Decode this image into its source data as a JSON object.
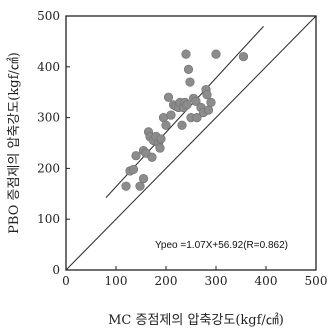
{
  "chart_data": {
    "type": "scatter",
    "title": "",
    "xlabel": "MC 증점제의 압축강도(kgf/㎠)",
    "ylabel": "PBO 증점제의 압축강도(kgf/㎠)",
    "xlim": [
      0,
      500
    ],
    "ylim": [
      0,
      500
    ],
    "xticks": [
      0,
      100,
      200,
      300,
      400,
      500
    ],
    "yticks": [
      0,
      100,
      200,
      300,
      400,
      500
    ],
    "grid": false,
    "legend": "none",
    "colors": {
      "points": "#8c8c8c",
      "lines": "#333333",
      "axes": "#222222"
    },
    "annotation": "Ypeo =1.07X+56.92(R=0.862)",
    "series": [
      {
        "points": [
          [
            120,
            165
          ],
          [
            128,
            195
          ],
          [
            135,
            198
          ],
          [
            140,
            225
          ],
          [
            148,
            165
          ],
          [
            155,
            180
          ],
          [
            155,
            235
          ],
          [
            160,
            230
          ],
          [
            165,
            272
          ],
          [
            168,
            262
          ],
          [
            172,
            222
          ],
          [
            175,
            255
          ],
          [
            180,
            263
          ],
          [
            185,
            250
          ],
          [
            188,
            240
          ],
          [
            190,
            258
          ],
          [
            195,
            300
          ],
          [
            200,
            285
          ],
          [
            205,
            340
          ],
          [
            210,
            305
          ],
          [
            215,
            325
          ],
          [
            220,
            322
          ],
          [
            225,
            320
          ],
          [
            228,
            330
          ],
          [
            232,
            285
          ],
          [
            235,
            320
          ],
          [
            238,
            330
          ],
          [
            240,
            425
          ],
          [
            242,
            325
          ],
          [
            245,
            395
          ],
          [
            248,
            370
          ],
          [
            250,
            300
          ],
          [
            255,
            338
          ],
          [
            260,
            332
          ],
          [
            262,
            300
          ],
          [
            270,
            320
          ],
          [
            275,
            310
          ],
          [
            280,
            355
          ],
          [
            282,
            345
          ],
          [
            285,
            315
          ],
          [
            290,
            330
          ],
          [
            300,
            425
          ],
          [
            355,
            420
          ]
        ]
      }
    ],
    "lines": [
      {
        "kind": "fit",
        "slope": 1.07,
        "intercept": 56.92,
        "x_range": [
          80,
          395
        ]
      },
      {
        "kind": "identity",
        "slope": 1.0,
        "intercept": 0,
        "x_range": [
          0,
          500
        ]
      }
    ]
  }
}
